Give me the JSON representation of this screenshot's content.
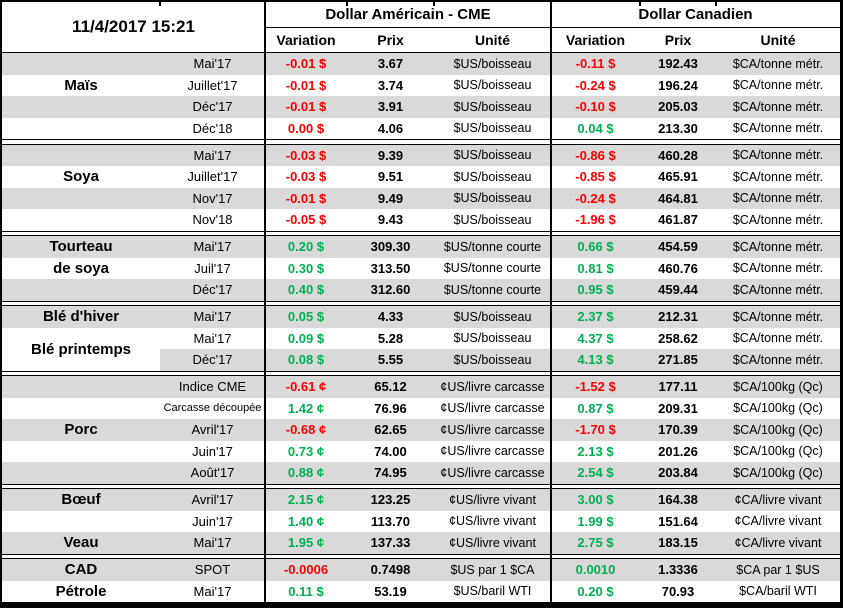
{
  "timestamp": "11/4/2017 15:21",
  "header": {
    "usd_title": "Dollar Américain - CME",
    "cad_title": "Dollar Canadien",
    "subcolumns": [
      "Variation",
      "Prix",
      "Unité"
    ]
  },
  "colors": {
    "positive": "#00B050",
    "negative": "#FF0000",
    "row_shade": "#D9D9D9",
    "border": "#000000"
  },
  "groups": [
    {
      "id": "mais",
      "rows": [
        {
          "label": "",
          "contract": "Mai'17",
          "shade": true,
          "us": {
            "var": "-0.01 $",
            "dir": "neg",
            "prix": "3.67",
            "unit": "$US/boisseau"
          },
          "ca": {
            "var": "-0.11 $",
            "dir": "neg",
            "prix": "192.43",
            "unit": "$CA/tonne métr."
          }
        },
        {
          "label": "Maïs",
          "contract": "Juillet'17",
          "shade": false,
          "us": {
            "var": "-0.01 $",
            "dir": "neg",
            "prix": "3.74",
            "unit": "$US/boisseau"
          },
          "ca": {
            "var": "-0.24 $",
            "dir": "neg",
            "prix": "196.24",
            "unit": "$CA/tonne métr."
          }
        },
        {
          "label": "",
          "contract": "Déc'17",
          "shade": true,
          "us": {
            "var": "-0.01 $",
            "dir": "neg",
            "prix": "3.91",
            "unit": "$US/boisseau"
          },
          "ca": {
            "var": "-0.10 $",
            "dir": "neg",
            "prix": "205.03",
            "unit": "$CA/tonne métr."
          }
        },
        {
          "label": "",
          "contract": "Déc'18",
          "shade": false,
          "us": {
            "var": "0.00 $",
            "dir": "neg",
            "prix": "4.06",
            "unit": "$US/boisseau"
          },
          "ca": {
            "var": "0.04 $",
            "dir": "pos",
            "prix": "213.30",
            "unit": "$CA/tonne métr."
          }
        }
      ]
    },
    {
      "id": "soya",
      "rows": [
        {
          "label": "",
          "contract": "Mai'17",
          "shade": true,
          "us": {
            "var": "-0.03 $",
            "dir": "neg",
            "prix": "9.39",
            "unit": "$US/boisseau"
          },
          "ca": {
            "var": "-0.86 $",
            "dir": "neg",
            "prix": "460.28",
            "unit": "$CA/tonne métr."
          }
        },
        {
          "label": "Soya",
          "contract": "Juillet'17",
          "shade": false,
          "us": {
            "var": "-0.03 $",
            "dir": "neg",
            "prix": "9.51",
            "unit": "$US/boisseau"
          },
          "ca": {
            "var": "-0.85 $",
            "dir": "neg",
            "prix": "465.91",
            "unit": "$CA/tonne métr."
          }
        },
        {
          "label": "",
          "contract": "Nov'17",
          "shade": true,
          "us": {
            "var": "-0.01 $",
            "dir": "neg",
            "prix": "9.49",
            "unit": "$US/boisseau"
          },
          "ca": {
            "var": "-0.24 $",
            "dir": "neg",
            "prix": "464.81",
            "unit": "$CA/tonne métr."
          }
        },
        {
          "label": "",
          "contract": "Nov'18",
          "shade": false,
          "us": {
            "var": "-0.05 $",
            "dir": "neg",
            "prix": "9.43",
            "unit": "$US/boisseau"
          },
          "ca": {
            "var": "-1.96 $",
            "dir": "neg",
            "prix": "461.87",
            "unit": "$CA/tonne métr."
          }
        }
      ]
    },
    {
      "id": "tourteau",
      "rows": [
        {
          "label": "Tourteau",
          "contract": "Mai'17",
          "shade": true,
          "us": {
            "var": "0.20 $",
            "dir": "pos",
            "prix": "309.30",
            "unit": "$US/tonne courte"
          },
          "ca": {
            "var": "0.66 $",
            "dir": "pos",
            "prix": "454.59",
            "unit": "$CA/tonne métr."
          }
        },
        {
          "label": "de soya",
          "contract": "Juil'17",
          "shade": false,
          "us": {
            "var": "0.30 $",
            "dir": "pos",
            "prix": "313.50",
            "unit": "$US/tonne courte"
          },
          "ca": {
            "var": "0.81 $",
            "dir": "pos",
            "prix": "460.76",
            "unit": "$CA/tonne métr."
          }
        },
        {
          "label": "",
          "contract": "Déc'17",
          "shade": true,
          "us": {
            "var": "0.40 $",
            "dir": "pos",
            "prix": "312.60",
            "unit": "$US/tonne courte"
          },
          "ca": {
            "var": "0.95 $",
            "dir": "pos",
            "prix": "459.44",
            "unit": "$CA/tonne métr."
          }
        }
      ]
    },
    {
      "id": "ble",
      "rows": [
        {
          "label": "Blé d'hiver",
          "contract": "Mai'17",
          "shade": true,
          "us": {
            "var": "0.05 $",
            "dir": "pos",
            "prix": "4.33",
            "unit": "$US/boisseau"
          },
          "ca": {
            "var": "2.37 $",
            "dir": "pos",
            "prix": "212.31",
            "unit": "$CA/tonne métr."
          }
        },
        {
          "label": "Blé printemps",
          "label_shift": true,
          "contract": "Mai'17",
          "shade": false,
          "us": {
            "var": "0.09 $",
            "dir": "pos",
            "prix": "5.28",
            "unit": "$US/boisseau"
          },
          "ca": {
            "var": "4.37 $",
            "dir": "pos",
            "prix": "258.62",
            "unit": "$CA/tonne métr."
          }
        },
        {
          "label": "",
          "label_white": true,
          "contract": "Déc'17",
          "shade": true,
          "us": {
            "var": "0.08 $",
            "dir": "pos",
            "prix": "5.55",
            "unit": "$US/boisseau"
          },
          "ca": {
            "var": "4.13 $",
            "dir": "pos",
            "prix": "271.85",
            "unit": "$CA/tonne métr."
          }
        }
      ]
    },
    {
      "id": "porc",
      "rows": [
        {
          "label": "",
          "contract": "Indice CME",
          "shade": true,
          "us": {
            "var": "-0.61 ¢",
            "dir": "neg",
            "prix": "65.12",
            "unit": "¢US/livre carcasse"
          },
          "ca": {
            "var": "-1.52 $",
            "dir": "neg",
            "prix": "177.11",
            "unit": "$CA/100kg (Qc)"
          }
        },
        {
          "label": "",
          "contract": "Carcasse découpée",
          "contract_small": true,
          "shade": false,
          "us": {
            "var": "1.42 ¢",
            "dir": "pos",
            "prix": "76.96",
            "unit": "¢US/livre carcasse"
          },
          "ca": {
            "var": "0.87 $",
            "dir": "pos",
            "prix": "209.31",
            "unit": "$CA/100kg (Qc)"
          }
        },
        {
          "label": "Porc",
          "contract": "Avril'17",
          "shade": true,
          "us": {
            "var": "-0.68 ¢",
            "dir": "neg",
            "prix": "62.65",
            "unit": "¢US/livre carcasse"
          },
          "ca": {
            "var": "-1.70 $",
            "dir": "neg",
            "prix": "170.39",
            "unit": "$CA/100kg (Qc)"
          }
        },
        {
          "label": "",
          "contract": "Juin'17",
          "shade": false,
          "us": {
            "var": "0.73 ¢",
            "dir": "pos",
            "prix": "74.00",
            "unit": "¢US/livre carcasse"
          },
          "ca": {
            "var": "2.13 $",
            "dir": "pos",
            "prix": "201.26",
            "unit": "$CA/100kg (Qc)"
          }
        },
        {
          "label": "",
          "contract": "Août'17",
          "shade": true,
          "us": {
            "var": "0.88 ¢",
            "dir": "pos",
            "prix": "74.95",
            "unit": "¢US/livre carcasse"
          },
          "ca": {
            "var": "2.54 $",
            "dir": "pos",
            "prix": "203.84",
            "unit": "$CA/100kg (Qc)"
          }
        }
      ]
    },
    {
      "id": "boeuf-veau",
      "rows": [
        {
          "label": "Bœuf",
          "contract": "Avril'17",
          "shade": true,
          "us": {
            "var": "2.15 ¢",
            "dir": "pos",
            "prix": "123.25",
            "unit": "¢US/livre vivant"
          },
          "ca": {
            "var": "3.00 $",
            "dir": "pos",
            "prix": "164.38",
            "unit": "¢CA/livre vivant"
          }
        },
        {
          "label": "",
          "contract": "Juin'17",
          "shade": false,
          "us": {
            "var": "1.40 ¢",
            "dir": "pos",
            "prix": "113.70",
            "unit": "¢US/livre vivant"
          },
          "ca": {
            "var": "1.99 $",
            "dir": "pos",
            "prix": "151.64",
            "unit": "¢CA/livre vivant"
          }
        },
        {
          "label": "Veau",
          "contract": "Mai'17",
          "shade": true,
          "us": {
            "var": "1.95 ¢",
            "dir": "pos",
            "prix": "137.33",
            "unit": "¢US/livre vivant"
          },
          "ca": {
            "var": "2.75 $",
            "dir": "pos",
            "prix": "183.15",
            "unit": "¢CA/livre vivant"
          }
        }
      ]
    },
    {
      "id": "cad-petrole",
      "rows": [
        {
          "label": "CAD",
          "contract": "SPOT",
          "shade": true,
          "us": {
            "var": "-0.0006",
            "dir": "neg",
            "prix": "0.7498",
            "unit": "$US par 1 $CA"
          },
          "ca": {
            "var": "0.0010",
            "dir": "pos",
            "prix": "1.3336",
            "unit": "$CA par 1 $US"
          }
        },
        {
          "label": "Pétrole",
          "contract": "Mai'17",
          "shade": false,
          "us": {
            "var": "0.11 $",
            "dir": "pos",
            "prix": "53.19",
            "unit": "$US/baril WTI"
          },
          "ca": {
            "var": "0.20 $",
            "dir": "pos",
            "prix": "70.93",
            "unit": "$CA/baril WTI"
          }
        }
      ]
    }
  ]
}
